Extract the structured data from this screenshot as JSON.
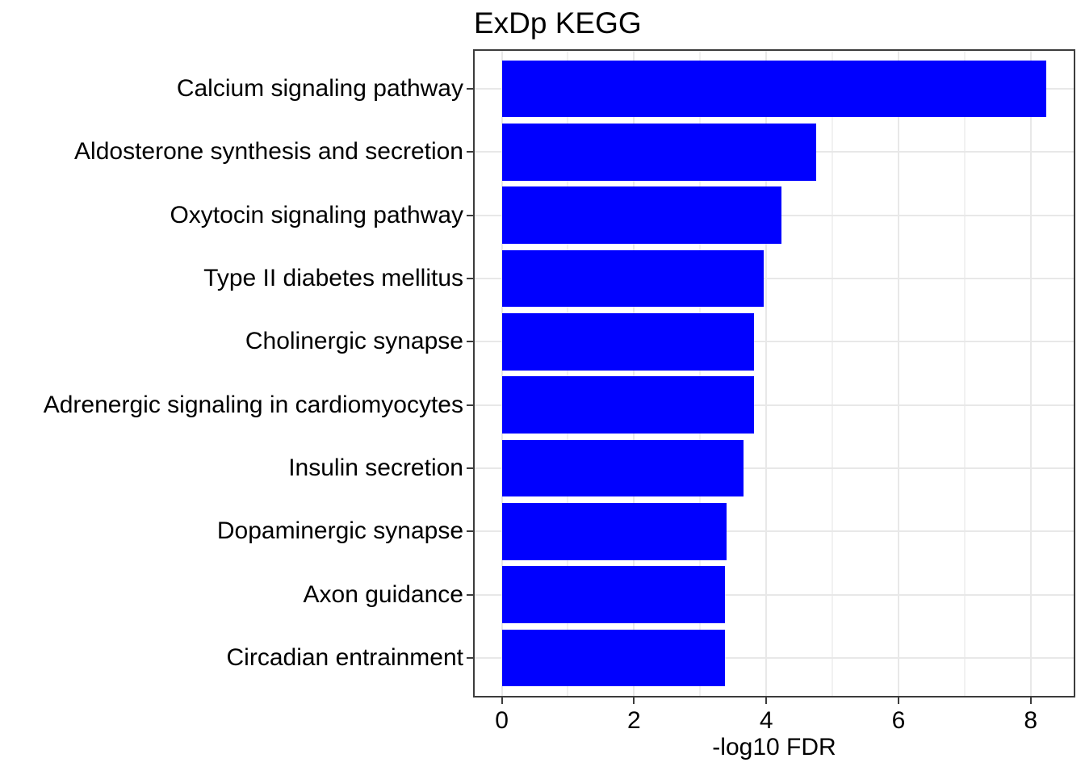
{
  "title": "ExDp KEGG",
  "colors": {
    "bar": "#0000ff",
    "grid_major": "#e8e8e8",
    "grid_minor": "#f1f1f1",
    "panel_border": "#3c3c3c",
    "tick": "#3c3c3c",
    "text": "#000000",
    "background": "#ffffff"
  },
  "chart_data": {
    "type": "bar",
    "orientation": "horizontal",
    "title": "ExDp KEGG",
    "xlabel": "-log10 FDR",
    "ylabel": "",
    "categories": [
      "Calcium signaling pathway",
      "Aldosterone synthesis and secretion",
      "Oxytocin signaling pathway",
      "Type II diabetes mellitus",
      "Cholinergic synapse",
      "Adrenergic signaling in cardiomyocytes",
      "Insulin secretion",
      "Dopaminergic synapse",
      "Axon guidance",
      "Circadian entrainment"
    ],
    "values": [
      8.24,
      4.75,
      4.23,
      3.96,
      3.81,
      3.82,
      3.66,
      3.4,
      3.38,
      3.37
    ],
    "xlim": [
      -0.41,
      8.65
    ],
    "x_major_ticks": [
      0,
      2,
      4,
      6,
      8
    ],
    "x_tick_labels": [
      "0",
      "2",
      "4",
      "6",
      "8"
    ],
    "x_minor_gridlines": [
      1,
      3,
      5,
      7
    ],
    "grid": true,
    "legend": false,
    "bar_color": "#0000ff"
  }
}
